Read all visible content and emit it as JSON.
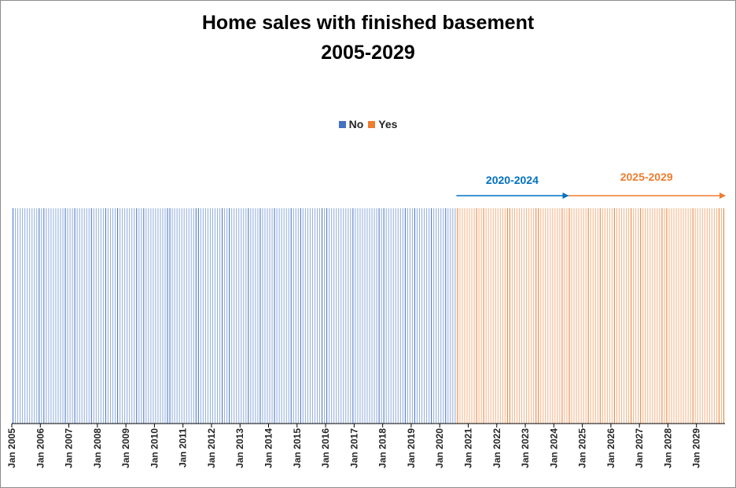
{
  "chart_data": {
    "type": "bar",
    "title": "Home sales with finished basement",
    "subtitle": "2005-2029",
    "xlabel": "",
    "ylabel": "",
    "x_start": "Jan 2005",
    "x_end": "Dec 2029",
    "x_interval": "month",
    "tick_labels": [
      "Jan 2005",
      "Jan 2006",
      "Jan 2007",
      "Jan 2008",
      "Jan 2009",
      "Jan 2010",
      "Jan 2011",
      "Jan 2012",
      "Jan 2013",
      "Jan 2014",
      "Jan 2015",
      "Jan 2016",
      "Jan 2017",
      "Jan 2018",
      "Jan 2019",
      "Jan 2020",
      "Jan 2021",
      "Jan 2022",
      "Jan 2023",
      "Jan 2024",
      "Jan 2025",
      "Jan 2026",
      "Jan 2027",
      "Jan 2028",
      "Jan 2029"
    ],
    "ylim": [
      0,
      1
    ],
    "series": [
      {
        "name": "No",
        "color": "#4472C4"
      },
      {
        "name": "Yes",
        "color": "#ED7D31"
      }
    ],
    "series_by_period": [
      {
        "from": "Jan 2005",
        "to": "Jul 2020",
        "series": "No"
      },
      {
        "from": "Aug 2020",
        "to": "Dec 2029",
        "series": "Yes"
      }
    ],
    "legend_position": "top",
    "grid": false,
    "annotations": [
      {
        "text": "2020-2024",
        "from": "Aug 2020",
        "to": "Jun 2024",
        "color": "#0070C0"
      },
      {
        "text": "2025-2029",
        "from": "Jul 2024",
        "to": "Dec 2029",
        "color": "#ED7D31"
      }
    ]
  }
}
